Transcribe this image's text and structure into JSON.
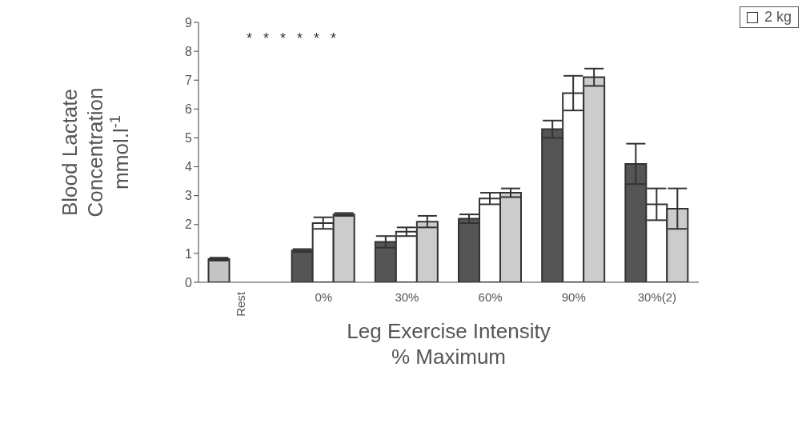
{
  "chart_data": {
    "type": "bar",
    "xlabel": "Leg Exercise Intensity\n% Maximum",
    "ylabel": "Blood Lactate\nConcentration\nmmol.l$^{-1}$",
    "categories": [
      "Rest",
      "0%",
      "30%",
      "60%",
      "90%",
      "30%(2)"
    ],
    "series": [
      {
        "color": "#555555",
        "colors": [
          "#c4c4c4",
          "#555555",
          "#555555",
          "#555555",
          "#555555",
          "#555555"
        ],
        "values": [
          0.8,
          1.1,
          1.4,
          2.2,
          5.3,
          4.1
        ],
        "errors": [
          0.05,
          0.05,
          0.2,
          0.15,
          0.3,
          0.7
        ]
      },
      {
        "name": "2 kg",
        "color": "#ffffff",
        "values": [
          null,
          2.05,
          1.75,
          2.9,
          6.55,
          2.7
        ],
        "errors": [
          null,
          0.2,
          0.15,
          0.2,
          0.6,
          0.55
        ]
      },
      {
        "color": "#cccccc",
        "values": [
          null,
          2.35,
          2.1,
          3.1,
          7.1,
          2.55
        ],
        "errors": [
          null,
          0.05,
          0.2,
          0.15,
          0.3,
          0.7
        ]
      }
    ],
    "annotations": [
      "*",
      "*",
      "*",
      "*",
      "*",
      "*"
    ],
    "ylim": [
      0,
      9
    ],
    "yticks": [
      0,
      1,
      2,
      3,
      4,
      5,
      6,
      7,
      8,
      9
    ],
    "grid": false,
    "legend": "top right"
  }
}
